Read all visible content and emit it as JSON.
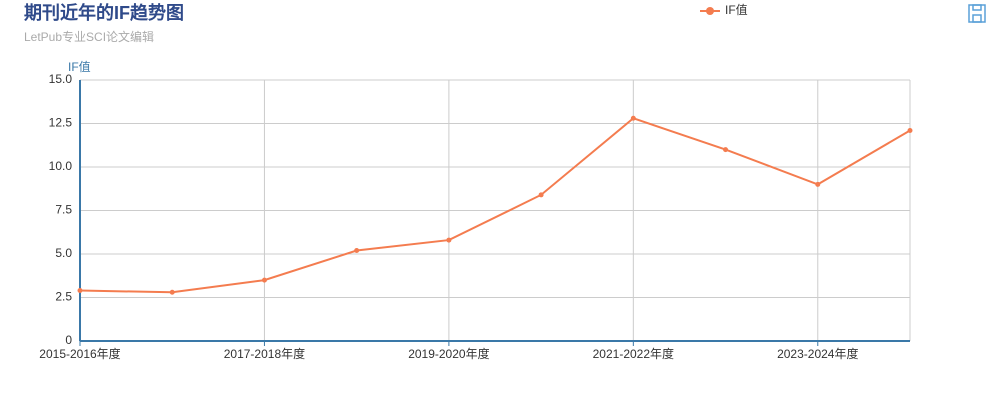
{
  "chart_data": {
    "type": "line",
    "title": "期刊近年的IF趋势图",
    "subtitle": "LetPub专业SCI论文编辑",
    "y_label": "IF值",
    "categories": [
      "2015-2016年度",
      null,
      "2017-2018年度",
      null,
      "2019-2020年度",
      null,
      "2021-2022年度",
      null,
      "2023-2024年度",
      null
    ],
    "series": [
      {
        "name": "IF值",
        "color": "#f47c4f",
        "values": [
          2.9,
          2.8,
          3.5,
          5.2,
          5.8,
          8.4,
          12.8,
          11.0,
          9.0,
          12.1
        ]
      }
    ],
    "ylim": [
      0,
      15
    ],
    "yticks": [
      0,
      2.5,
      {
        "value": 5,
        "label": "5.0"
      },
      7.5,
      {
        "value": 10,
        "label": "10.0"
      },
      12.5,
      {
        "value": 15,
        "label": "15.0"
      }
    ],
    "grid": true,
    "legend": "top"
  }
}
